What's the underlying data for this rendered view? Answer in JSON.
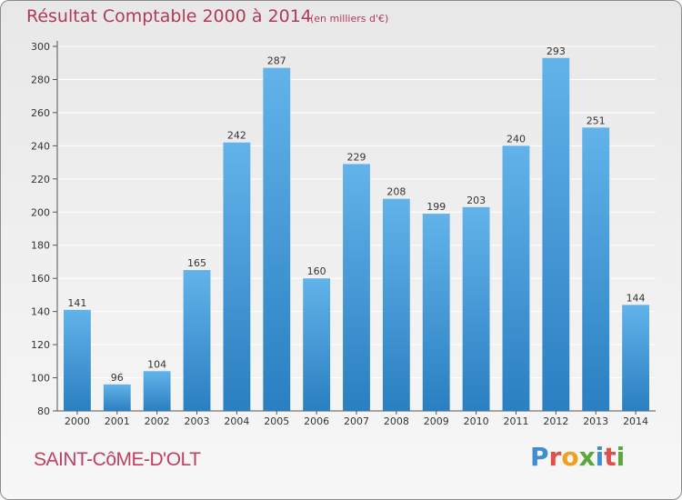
{
  "chart_data": {
    "type": "bar",
    "title": "Résultat Comptable 2000 à 2014",
    "subtitle": "(en milliers d'€)",
    "categories": [
      "2000",
      "2001",
      "2002",
      "2003",
      "2004",
      "2005",
      "2006",
      "2007",
      "2008",
      "2009",
      "2010",
      "2011",
      "2012",
      "2013",
      "2014"
    ],
    "values": [
      141,
      96,
      104,
      165,
      242,
      287,
      160,
      229,
      208,
      199,
      203,
      240,
      293,
      251,
      144
    ],
    "ylim": [
      80,
      300
    ],
    "yticks": [
      80,
      100,
      120,
      140,
      160,
      180,
      200,
      220,
      240,
      260,
      280,
      300
    ],
    "xlabel": "",
    "ylabel": "",
    "grid": true,
    "colors": {
      "bar_light": "#62b3ea",
      "bar_dark": "#2a7fc1",
      "grid": "#ffffff"
    }
  },
  "footer": {
    "location": "SAINT-CôME-D'OLT",
    "logo": [
      "P",
      "r",
      "o",
      "x",
      "i",
      "t",
      "i"
    ],
    "logo_colors": [
      "#3f8fd0",
      "#e0504a",
      "#f0a020",
      "#5aa83a",
      "#3f8fd0",
      "#e0504a",
      "#5aa83a"
    ]
  }
}
